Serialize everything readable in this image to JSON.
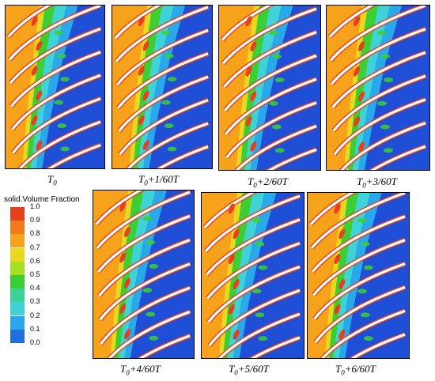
{
  "panels": [
    {
      "id": "p0",
      "caption_main": "T",
      "caption_sub": "0",
      "caption_rest": ""
    },
    {
      "id": "p1",
      "caption_main": "T",
      "caption_sub": "0",
      "caption_rest": "+1/60T"
    },
    {
      "id": "p2",
      "caption_main": "T",
      "caption_sub": "0",
      "caption_rest": "+2/60T"
    },
    {
      "id": "p3",
      "caption_main": "T",
      "caption_sub": "0",
      "caption_rest": "+3/60T"
    },
    {
      "id": "p4",
      "caption_main": "T",
      "caption_sub": "0",
      "caption_rest": "+4/60T"
    },
    {
      "id": "p5",
      "caption_main": "T",
      "caption_sub": "0",
      "caption_rest": "+5/60T"
    },
    {
      "id": "p6",
      "caption_main": "T",
      "caption_sub": "0",
      "caption_rest": "+6/60T"
    }
  ],
  "legend": {
    "title": "solid.Volume Fraction",
    "ticks": [
      "1.0",
      "0.9",
      "0.8",
      "0.7",
      "0.6",
      "0.5",
      "0.4",
      "0.3",
      "0.2",
      "0.1",
      "0.0"
    ],
    "colors": [
      "#e8401c",
      "#f07b18",
      "#f6a21a",
      "#e8d820",
      "#a6e024",
      "#3ccf34",
      "#39d398",
      "#3fd3d8",
      "#29a8ec",
      "#1f6fe0",
      "#1f4fd6"
    ]
  }
}
